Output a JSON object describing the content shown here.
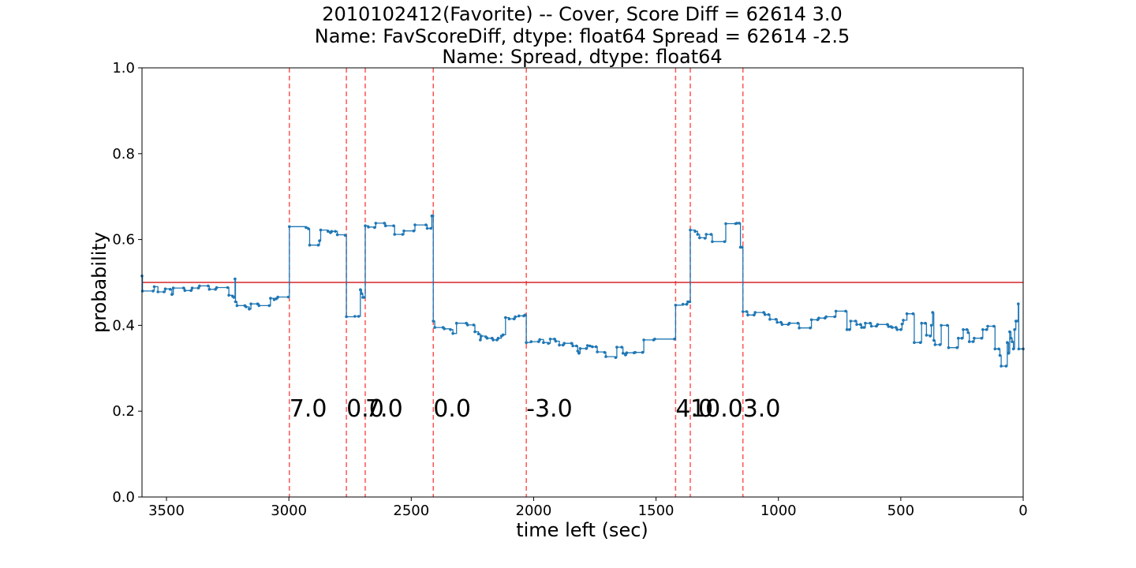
{
  "chart_data": {
    "type": "line",
    "title_lines": [
      "2010102412(Favorite) -- Cover, Score Diff = 62614    3.0",
      "Name: FavScoreDiff, dtype: float64 Spread = 62614   -2.5",
      "Name: Spread, dtype: float64"
    ],
    "xlabel": "time left (sec)",
    "ylabel": "probability",
    "xlim": [
      3600,
      0
    ],
    "ylim": [
      0.0,
      1.0
    ],
    "x_ticks": [
      3500,
      3000,
      2500,
      2000,
      1500,
      1000,
      500,
      0
    ],
    "y_ticks": [
      0.0,
      0.2,
      0.4,
      0.6,
      0.8,
      1.0
    ],
    "x_tick_labels": [
      "3500",
      "3000",
      "2500",
      "2000",
      "1500",
      "1000",
      "500",
      "0"
    ],
    "y_tick_labels": [
      "0.0",
      "0.2",
      "0.4",
      "0.6",
      "0.8",
      "1.0"
    ],
    "grid": false,
    "colors": {
      "series": "#1f77b4",
      "threshold": "#d62728",
      "event_lines": "#ff5555"
    },
    "threshold_line": {
      "y": 0.5
    },
    "event_lines": [
      {
        "x": 2998,
        "label": "7.0"
      },
      {
        "x": 2765,
        "label": "0.0"
      },
      {
        "x": 2688,
        "label": "7.0"
      },
      {
        "x": 2410,
        "label": "0.0"
      },
      {
        "x": 2030,
        "label": "-3.0"
      },
      {
        "x": 1420,
        "label": "4.0"
      },
      {
        "x": 1360,
        "label": "10.0"
      },
      {
        "x": 1145,
        "label": "3.0"
      }
    ],
    "annotation_y": 0.21,
    "series": [
      {
        "points": [
          [
            3600,
            0.515
          ],
          [
            3598,
            0.48
          ],
          [
            3555,
            0.48
          ],
          [
            3550,
            0.49
          ],
          [
            3535,
            0.478
          ],
          [
            3510,
            0.478
          ],
          [
            3505,
            0.485
          ],
          [
            3485,
            0.484
          ],
          [
            3478,
            0.472
          ],
          [
            3472,
            0.487
          ],
          [
            3430,
            0.487
          ],
          [
            3425,
            0.481
          ],
          [
            3400,
            0.481
          ],
          [
            3395,
            0.487
          ],
          [
            3370,
            0.487
          ],
          [
            3365,
            0.492
          ],
          [
            3330,
            0.492
          ],
          [
            3325,
            0.484
          ],
          [
            3300,
            0.484
          ],
          [
            3295,
            0.488
          ],
          [
            3250,
            0.488
          ],
          [
            3245,
            0.47
          ],
          [
            3230,
            0.468
          ],
          [
            3225,
            0.465
          ],
          [
            3220,
            0.508
          ],
          [
            3218,
            0.455
          ],
          [
            3212,
            0.446
          ],
          [
            3180,
            0.446
          ],
          [
            3175,
            0.443
          ],
          [
            3162,
            0.438
          ],
          [
            3155,
            0.45
          ],
          [
            3128,
            0.45
          ],
          [
            3122,
            0.446
          ],
          [
            3080,
            0.446
          ],
          [
            3075,
            0.463
          ],
          [
            3060,
            0.46
          ],
          [
            3052,
            0.462
          ],
          [
            3045,
            0.466
          ],
          [
            3002,
            0.466
          ],
          [
            2998,
            0.63
          ],
          [
            2930,
            0.628
          ],
          [
            2920,
            0.625
          ],
          [
            2915,
            0.587
          ],
          [
            2880,
            0.587
          ],
          [
            2875,
            0.597
          ],
          [
            2870,
            0.622
          ],
          [
            2840,
            0.619
          ],
          [
            2830,
            0.616
          ],
          [
            2825,
            0.619
          ],
          [
            2810,
            0.619
          ],
          [
            2802,
            0.611
          ],
          [
            2770,
            0.61
          ],
          [
            2765,
            0.42
          ],
          [
            2730,
            0.421
          ],
          [
            2715,
            0.421
          ],
          [
            2708,
            0.483
          ],
          [
            2703,
            0.474
          ],
          [
            2698,
            0.465
          ],
          [
            2693,
            0.465
          ],
          [
            2688,
            0.632
          ],
          [
            2675,
            0.629
          ],
          [
            2650,
            0.628
          ],
          [
            2645,
            0.638
          ],
          [
            2610,
            0.638
          ],
          [
            2605,
            0.632
          ],
          [
            2572,
            0.632
          ],
          [
            2568,
            0.612
          ],
          [
            2535,
            0.612
          ],
          [
            2530,
            0.62
          ],
          [
            2490,
            0.62
          ],
          [
            2485,
            0.634
          ],
          [
            2440,
            0.634
          ],
          [
            2435,
            0.626
          ],
          [
            2420,
            0.626
          ],
          [
            2416,
            0.655
          ],
          [
            2412,
            0.655
          ],
          [
            2410,
            0.41
          ],
          [
            2404,
            0.395
          ],
          [
            2370,
            0.395
          ],
          [
            2365,
            0.392
          ],
          [
            2340,
            0.39
          ],
          [
            2330,
            0.381
          ],
          [
            2315,
            0.405
          ],
          [
            2275,
            0.405
          ],
          [
            2270,
            0.401
          ],
          [
            2245,
            0.401
          ],
          [
            2240,
            0.385
          ],
          [
            2225,
            0.38
          ],
          [
            2218,
            0.366
          ],
          [
            2214,
            0.375
          ],
          [
            2195,
            0.373
          ],
          [
            2190,
            0.37
          ],
          [
            2170,
            0.37
          ],
          [
            2165,
            0.366
          ],
          [
            2150,
            0.366
          ],
          [
            2145,
            0.37
          ],
          [
            2132,
            0.375
          ],
          [
            2125,
            0.378
          ],
          [
            2115,
            0.418
          ],
          [
            2100,
            0.415
          ],
          [
            2080,
            0.415
          ],
          [
            2075,
            0.42
          ],
          [
            2060,
            0.422
          ],
          [
            2040,
            0.422
          ],
          [
            2035,
            0.424
          ],
          [
            2030,
            0.36
          ],
          [
            2010,
            0.362
          ],
          [
            1980,
            0.362
          ],
          [
            1975,
            0.367
          ],
          [
            1960,
            0.36
          ],
          [
            1940,
            0.358
          ],
          [
            1932,
            0.368
          ],
          [
            1915,
            0.368
          ],
          [
            1910,
            0.363
          ],
          [
            1895,
            0.354
          ],
          [
            1880,
            0.354
          ],
          [
            1875,
            0.358
          ],
          [
            1845,
            0.358
          ],
          [
            1840,
            0.352
          ],
          [
            1825,
            0.352
          ],
          [
            1820,
            0.34
          ],
          [
            1815,
            0.335
          ],
          [
            1810,
            0.346
          ],
          [
            1785,
            0.346
          ],
          [
            1780,
            0.353
          ],
          [
            1770,
            0.352
          ],
          [
            1760,
            0.35
          ],
          [
            1745,
            0.35
          ],
          [
            1740,
            0.338
          ],
          [
            1710,
            0.337
          ],
          [
            1705,
            0.327
          ],
          [
            1665,
            0.325
          ],
          [
            1660,
            0.349
          ],
          [
            1640,
            0.349
          ],
          [
            1635,
            0.335
          ],
          [
            1625,
            0.331
          ],
          [
            1620,
            0.336
          ],
          [
            1590,
            0.336
          ],
          [
            1585,
            0.337
          ],
          [
            1555,
            0.337
          ],
          [
            1550,
            0.366
          ],
          [
            1510,
            0.366
          ],
          [
            1505,
            0.368
          ],
          [
            1425,
            0.368
          ],
          [
            1420,
            0.447
          ],
          [
            1390,
            0.449
          ],
          [
            1375,
            0.449
          ],
          [
            1370,
            0.455
          ],
          [
            1362,
            0.455
          ],
          [
            1360,
            0.622
          ],
          [
            1340,
            0.619
          ],
          [
            1330,
            0.612
          ],
          [
            1322,
            0.604
          ],
          [
            1300,
            0.603
          ],
          [
            1295,
            0.612
          ],
          [
            1275,
            0.612
          ],
          [
            1270,
            0.595
          ],
          [
            1220,
            0.595
          ],
          [
            1215,
            0.637
          ],
          [
            1175,
            0.637
          ],
          [
            1170,
            0.638
          ],
          [
            1160,
            0.638
          ],
          [
            1155,
            0.582
          ],
          [
            1148,
            0.582
          ],
          [
            1145,
            0.432
          ],
          [
            1130,
            0.432
          ],
          [
            1125,
            0.424
          ],
          [
            1100,
            0.424
          ],
          [
            1095,
            0.43
          ],
          [
            1060,
            0.43
          ],
          [
            1055,
            0.425
          ],
          [
            1040,
            0.425
          ],
          [
            1035,
            0.414
          ],
          [
            1010,
            0.414
          ],
          [
            1005,
            0.407
          ],
          [
            990,
            0.407
          ],
          [
            985,
            0.402
          ],
          [
            960,
            0.402
          ],
          [
            955,
            0.405
          ],
          [
            920,
            0.405
          ],
          [
            915,
            0.394
          ],
          [
            870,
            0.394
          ],
          [
            865,
            0.413
          ],
          [
            840,
            0.413
          ],
          [
            835,
            0.417
          ],
          [
            810,
            0.417
          ],
          [
            805,
            0.42
          ],
          [
            770,
            0.42
          ],
          [
            765,
            0.433
          ],
          [
            725,
            0.433
          ],
          [
            720,
            0.39
          ],
          [
            710,
            0.39
          ],
          [
            705,
            0.41
          ],
          [
            685,
            0.41
          ],
          [
            680,
            0.402
          ],
          [
            665,
            0.402
          ],
          [
            660,
            0.395
          ],
          [
            650,
            0.395
          ],
          [
            645,
            0.405
          ],
          [
            625,
            0.405
          ],
          [
            620,
            0.398
          ],
          [
            600,
            0.398
          ],
          [
            595,
            0.402
          ],
          [
            555,
            0.402
          ],
          [
            550,
            0.397
          ],
          [
            540,
            0.397
          ],
          [
            535,
            0.395
          ],
          [
            520,
            0.395
          ],
          [
            515,
            0.39
          ],
          [
            500,
            0.39
          ],
          [
            495,
            0.403
          ],
          [
            490,
            0.412
          ],
          [
            475,
            0.427
          ],
          [
            450,
            0.427
          ],
          [
            445,
            0.36
          ],
          [
            420,
            0.36
          ],
          [
            415,
            0.405
          ],
          [
            400,
            0.405
          ],
          [
            395,
            0.377
          ],
          [
            380,
            0.375
          ],
          [
            375,
            0.4
          ],
          [
            370,
            0.43
          ],
          [
            365,
            0.365
          ],
          [
            360,
            0.355
          ],
          [
            340,
            0.355
          ],
          [
            335,
            0.4
          ],
          [
            310,
            0.4
          ],
          [
            305,
            0.348
          ],
          [
            270,
            0.348
          ],
          [
            265,
            0.37
          ],
          [
            250,
            0.37
          ],
          [
            245,
            0.39
          ],
          [
            230,
            0.39
          ],
          [
            225,
            0.383
          ],
          [
            220,
            0.362
          ],
          [
            205,
            0.362
          ],
          [
            200,
            0.37
          ],
          [
            170,
            0.37
          ],
          [
            165,
            0.39
          ],
          [
            150,
            0.39
          ],
          [
            145,
            0.398
          ],
          [
            120,
            0.398
          ],
          [
            115,
            0.345
          ],
          [
            100,
            0.345
          ],
          [
            95,
            0.33
          ],
          [
            90,
            0.305
          ],
          [
            70,
            0.305
          ],
          [
            65,
            0.36
          ],
          [
            60,
            0.335
          ],
          [
            55,
            0.385
          ],
          [
            50,
            0.37
          ],
          [
            45,
            0.362
          ],
          [
            40,
            0.345
          ],
          [
            35,
            0.39
          ],
          [
            30,
            0.41
          ],
          [
            25,
            0.41
          ],
          [
            20,
            0.45
          ],
          [
            18,
            0.345
          ],
          [
            0,
            0.345
          ]
        ]
      }
    ]
  }
}
